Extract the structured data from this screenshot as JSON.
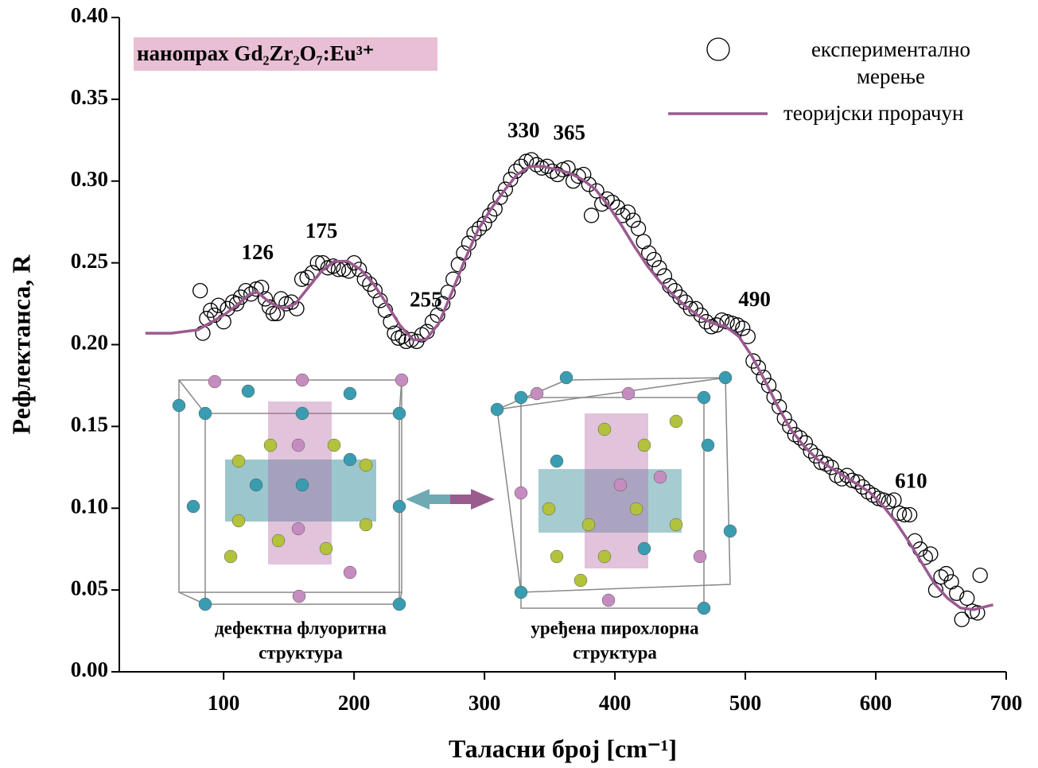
{
  "chart_data": {
    "type": "scatter-line",
    "xlabel": "Таласни број [cm⁻¹]",
    "ylabel": "Рефлектанса, R",
    "sample_label": "нанопрах Gd₂Zr₂O₇:Eu³⁺",
    "xlim": [
      20,
      700
    ],
    "xticks": [
      100,
      200,
      300,
      400,
      500,
      600,
      700
    ],
    "ylim": [
      0,
      0.4
    ],
    "yticks": [
      {
        "value": 0,
        "label": "0.00"
      },
      {
        "value": 0.05,
        "label": "0.05"
      },
      {
        "value": 0.1,
        "label": "0.10"
      },
      {
        "value": 0.15,
        "label": "0.15"
      },
      {
        "value": 0.2,
        "label": "0.20"
      },
      {
        "value": 0.25,
        "label": "0.25"
      },
      {
        "value": 0.3,
        "label": "0.30"
      },
      {
        "value": 0.35,
        "label": "0.35"
      },
      {
        "value": 0.4,
        "label": "0.40"
      }
    ],
    "peak_labels": [
      126,
      175,
      255,
      330,
      365,
      490,
      610
    ],
    "insets": [
      {
        "label": [
          "дефектна флуоритна",
          "структура"
        ]
      },
      {
        "label": [
          "уређена пирохлорна",
          "структура"
        ]
      }
    ],
    "series": [
      {
        "name": "експериментално мерење",
        "marker": "open-circle",
        "color": "#000000",
        "x": [
          82,
          84,
          87,
          90,
          93,
          96,
          100,
          103,
          107,
          110,
          113,
          117,
          121,
          125,
          129,
          132,
          135,
          138,
          141,
          144,
          148,
          152,
          156,
          160,
          164,
          168,
          172,
          176,
          180,
          184,
          188,
          192,
          196,
          200,
          204,
          208,
          212,
          216,
          220,
          224,
          228,
          231,
          234,
          237,
          240,
          244,
          248,
          252,
          256,
          260,
          264,
          268,
          272,
          276,
          280,
          284,
          288,
          292,
          296,
          300,
          304,
          308,
          312,
          316,
          320,
          324,
          328,
          332,
          336,
          340,
          344,
          348,
          352,
          356,
          360,
          364,
          368,
          372,
          376,
          380,
          382,
          386,
          390,
          394,
          398,
          402,
          406,
          410,
          414,
          418,
          422,
          426,
          430,
          434,
          438,
          442,
          446,
          450,
          454,
          458,
          462,
          466,
          470,
          474,
          478,
          482,
          486,
          490,
          494,
          498,
          502,
          506,
          510,
          514,
          518,
          522,
          526,
          530,
          534,
          538,
          542,
          546,
          550,
          554,
          558,
          562,
          566,
          570,
          574,
          578,
          582,
          586,
          590,
          594,
          598,
          602,
          606,
          610,
          614,
          618,
          622,
          626,
          630,
          634,
          638,
          642,
          646,
          650,
          654,
          658,
          662,
          666,
          670,
          674,
          678,
          680
        ],
        "values": [
          0.233,
          0.207,
          0.216,
          0.221,
          0.218,
          0.224,
          0.214,
          0.222,
          0.226,
          0.225,
          0.229,
          0.233,
          0.231,
          0.234,
          0.235,
          0.228,
          0.223,
          0.219,
          0.219,
          0.228,
          0.225,
          0.226,
          0.222,
          0.24,
          0.241,
          0.244,
          0.25,
          0.25,
          0.247,
          0.248,
          0.246,
          0.246,
          0.245,
          0.25,
          0.246,
          0.24,
          0.237,
          0.233,
          0.227,
          0.221,
          0.214,
          0.207,
          0.204,
          0.205,
          0.202,
          0.203,
          0.202,
          0.206,
          0.208,
          0.214,
          0.218,
          0.225,
          0.232,
          0.24,
          0.249,
          0.256,
          0.262,
          0.268,
          0.271,
          0.274,
          0.279,
          0.283,
          0.29,
          0.295,
          0.301,
          0.306,
          0.309,
          0.312,
          0.313,
          0.31,
          0.308,
          0.309,
          0.306,
          0.304,
          0.307,
          0.308,
          0.3,
          0.303,
          0.304,
          0.298,
          0.279,
          0.294,
          0.286,
          0.289,
          0.287,
          0.284,
          0.279,
          0.281,
          0.276,
          0.271,
          0.263,
          0.256,
          0.252,
          0.247,
          0.242,
          0.236,
          0.233,
          0.229,
          0.226,
          0.222,
          0.222,
          0.218,
          0.214,
          0.211,
          0.212,
          0.215,
          0.214,
          0.213,
          0.212,
          0.21,
          0.205,
          0.19,
          0.186,
          0.18,
          0.175,
          0.168,
          0.162,
          0.155,
          0.15,
          0.145,
          0.143,
          0.14,
          0.135,
          0.132,
          0.128,
          0.127,
          0.125,
          0.12,
          0.118,
          0.12,
          0.117,
          0.116,
          0.113,
          0.11,
          0.108,
          0.106,
          0.105,
          0.104,
          0.105,
          0.097,
          0.096,
          0.096,
          0.08,
          0.075,
          0.07,
          0.072,
          0.05,
          0.058,
          0.06,
          0.055,
          0.048,
          0.032,
          0.045,
          0.037,
          0.036,
          0.059
        ]
      },
      {
        "name": "теоријски прорачун",
        "marker": "line",
        "color": "#9b5a8f",
        "x": [
          40,
          60,
          80,
          100,
          110,
          120,
          126,
          135,
          145,
          155,
          165,
          175,
          185,
          195,
          205,
          215,
          225,
          235,
          245,
          255,
          265,
          275,
          285,
          295,
          305,
          315,
          325,
          335,
          345,
          355,
          365,
          375,
          385,
          395,
          405,
          415,
          425,
          435,
          445,
          455,
          465,
          475,
          485,
          495,
          505,
          515,
          525,
          535,
          545,
          555,
          565,
          575,
          585,
          595,
          605,
          615,
          625,
          635,
          645,
          655,
          665,
          675,
          685,
          690
        ],
        "values": [
          0.207,
          0.207,
          0.209,
          0.218,
          0.224,
          0.231,
          0.232,
          0.226,
          0.222,
          0.225,
          0.235,
          0.245,
          0.251,
          0.251,
          0.246,
          0.237,
          0.225,
          0.212,
          0.203,
          0.203,
          0.213,
          0.232,
          0.252,
          0.27,
          0.283,
          0.294,
          0.304,
          0.309,
          0.309,
          0.307,
          0.305,
          0.301,
          0.295,
          0.285,
          0.273,
          0.26,
          0.248,
          0.238,
          0.23,
          0.223,
          0.217,
          0.213,
          0.211,
          0.205,
          0.193,
          0.178,
          0.162,
          0.148,
          0.138,
          0.13,
          0.125,
          0.12,
          0.115,
          0.11,
          0.102,
          0.092,
          0.08,
          0.067,
          0.054,
          0.045,
          0.039,
          0.038,
          0.04,
          0.041
        ]
      }
    ]
  }
}
